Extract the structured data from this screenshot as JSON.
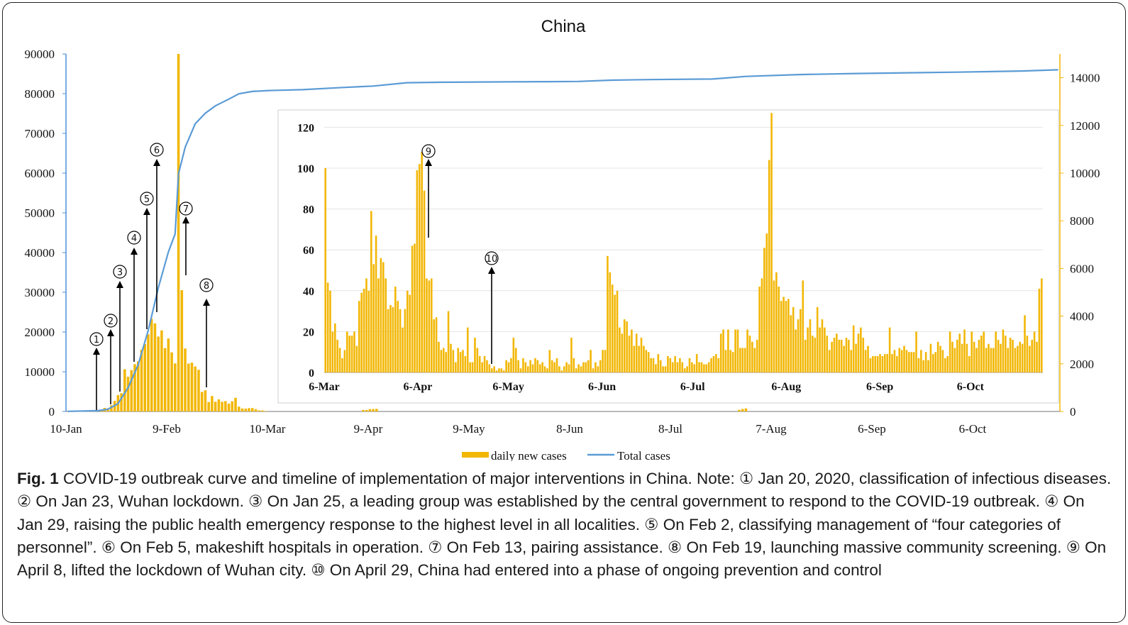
{
  "chart_data": [
    {
      "type": "bar+line",
      "title": "China",
      "x_tick_labels": [
        "10-Jan",
        "9-Feb",
        "10-Mar",
        "9-Apr",
        "9-May",
        "8-Jun",
        "8-Jul",
        "7-Aug",
        "6-Sep",
        "6-Oct"
      ],
      "y_left_ticks": [
        "0",
        "10000",
        "20000",
        "30000",
        "40000",
        "50000",
        "60000",
        "70000",
        "80000",
        "90000"
      ],
      "y_right_ticks": [
        "0",
        "2000",
        "4000",
        "6000",
        "8000",
        "10000",
        "12000",
        "14000"
      ],
      "ylim_left": [
        0,
        90000
      ],
      "ylim_right": [
        0,
        15000
      ],
      "x_start": "2020-01-10",
      "x_end": "2020-10-31",
      "series": [
        {
          "name": "daily new cases",
          "axis": "right",
          "color": "#F2B705",
          "values": [
            [
              "2020-01-20",
              77
            ],
            [
              "2020-01-21",
              149
            ],
            [
              "2020-01-22",
              131
            ],
            [
              "2020-01-23",
              259
            ],
            [
              "2020-01-24",
              444
            ],
            [
              "2020-01-25",
              688
            ],
            [
              "2020-01-26",
              769
            ],
            [
              "2020-01-27",
              1771
            ],
            [
              "2020-01-28",
              1459
            ],
            [
              "2020-01-29",
              1737
            ],
            [
              "2020-01-30",
              1982
            ],
            [
              "2020-01-31",
              2102
            ],
            [
              "2020-02-01",
              2590
            ],
            [
              "2020-02-02",
              2829
            ],
            [
              "2020-02-03",
              3235
            ],
            [
              "2020-02-04",
              3887
            ],
            [
              "2020-02-05",
              3694
            ],
            [
              "2020-02-06",
              3143
            ],
            [
              "2020-02-07",
              3399
            ],
            [
              "2020-02-08",
              2656
            ],
            [
              "2020-02-09",
              3062
            ],
            [
              "2020-02-10",
              2478
            ],
            [
              "2020-02-11",
              2015
            ],
            [
              "2020-02-12",
              15000
            ],
            [
              "2020-02-13",
              5090
            ],
            [
              "2020-02-14",
              2641
            ],
            [
              "2020-02-15",
              2009
            ],
            [
              "2020-02-16",
              2048
            ],
            [
              "2020-02-17",
              1886
            ],
            [
              "2020-02-18",
              1749
            ],
            [
              "2020-02-19",
              820
            ],
            [
              "2020-02-20",
              889
            ],
            [
              "2020-02-21",
              397
            ],
            [
              "2020-02-22",
              648
            ],
            [
              "2020-02-23",
              409
            ],
            [
              "2020-02-24",
              508
            ],
            [
              "2020-02-25",
              406
            ],
            [
              "2020-02-26",
              433
            ],
            [
              "2020-02-27",
              327
            ],
            [
              "2020-02-28",
              427
            ],
            [
              "2020-02-29",
              573
            ],
            [
              "2020-03-01",
              202
            ],
            [
              "2020-03-02",
              125
            ],
            [
              "2020-03-03",
              119
            ],
            [
              "2020-03-04",
              139
            ],
            [
              "2020-03-05",
              143
            ],
            [
              "2020-03-06",
              99
            ],
            [
              "2020-03-07",
              44
            ],
            [
              "2020-03-08",
              40
            ],
            [
              "2020-03-09",
              19
            ],
            [
              "2020-04-07",
              62
            ],
            [
              "2020-04-08",
              63
            ],
            [
              "2020-04-09",
              99
            ],
            [
              "2020-04-10",
              102
            ],
            [
              "2020-04-11",
              108
            ],
            [
              "2020-07-28",
              68
            ],
            [
              "2020-07-29",
              104
            ],
            [
              "2020-07-30",
              127
            ]
          ]
        },
        {
          "name": "Total cases",
          "axis": "left",
          "color": "#5B9BD5",
          "values": [
            [
              "2020-01-10",
              41
            ],
            [
              "2020-01-19",
              201
            ],
            [
              "2020-01-22",
              571
            ],
            [
              "2020-01-25",
              1975
            ],
            [
              "2020-01-28",
              5974
            ],
            [
              "2020-01-31",
              11791
            ],
            [
              "2020-02-03",
              20438
            ],
            [
              "2020-02-06",
              31161
            ],
            [
              "2020-02-09",
              40171
            ],
            [
              "2020-02-11",
              44653
            ],
            [
              "2020-02-12",
              59804
            ],
            [
              "2020-02-14",
              66492
            ],
            [
              "2020-02-17",
              72436
            ],
            [
              "2020-02-20",
              75077
            ],
            [
              "2020-02-23",
              76936
            ],
            [
              "2020-02-27",
              78630
            ],
            [
              "2020-03-01",
              79968
            ],
            [
              "2020-03-05",
              80552
            ],
            [
              "2020-03-10",
              80778
            ],
            [
              "2020-03-20",
              81008
            ],
            [
              "2020-04-01",
              81554
            ],
            [
              "2020-04-10",
              81907
            ],
            [
              "2020-04-20",
              82747
            ],
            [
              "2020-05-01",
              82875
            ],
            [
              "2020-05-20",
              82965
            ],
            [
              "2020-06-01",
              83022
            ],
            [
              "2020-06-10",
              83064
            ],
            [
              "2020-06-20",
              83396
            ],
            [
              "2020-07-01",
              83534
            ],
            [
              "2020-07-20",
              83682
            ],
            [
              "2020-07-30",
              84337
            ],
            [
              "2020-08-15",
              84808
            ],
            [
              "2020-09-01",
              85077
            ],
            [
              "2020-09-20",
              85291
            ],
            [
              "2020-10-01",
              85414
            ],
            [
              "2020-10-20",
              85704
            ],
            [
              "2020-10-31",
              86000
            ]
          ]
        }
      ],
      "legend": {
        "placement": "bottom",
        "entries": [
          "daily new cases",
          "Total cases"
        ]
      },
      "annotations": [
        "①",
        "②",
        "③",
        "④",
        "⑤",
        "⑥",
        "⑦",
        "⑧"
      ]
    },
    {
      "type": "bar",
      "role": "inset",
      "x_tick_labels": [
        "6-Mar",
        "6-Apr",
        "6-May",
        "6-Jun",
        "6-Jul",
        "6-Aug",
        "6-Sep",
        "6-Oct"
      ],
      "y_ticks": [
        "0",
        "20",
        "40",
        "60",
        "80",
        "100",
        "120"
      ],
      "ylim": [
        0,
        130
      ],
      "x_start": "2020-03-06",
      "x_end": "2020-10-29",
      "series": [
        {
          "name": "daily new cases",
          "color": "#F2B705",
          "values": [
            100,
            44,
            40,
            20,
            24,
            16,
            12,
            7,
            11,
            20,
            18,
            18,
            20,
            13,
            35,
            39,
            41,
            46,
            40,
            79,
            53,
            67,
            46,
            56,
            54,
            46,
            31,
            33,
            32,
            42,
            35,
            31,
            22,
            31,
            40,
            38,
            62,
            63,
            99,
            102,
            108,
            89,
            46,
            45,
            46,
            26,
            27,
            15,
            11,
            12,
            10,
            30,
            14,
            11,
            5,
            12,
            10,
            11,
            8,
            22,
            5,
            5,
            17,
            12,
            8,
            5,
            8,
            6,
            4,
            2,
            3,
            1,
            2,
            2,
            1,
            6,
            5,
            7,
            17,
            12,
            6,
            2,
            7,
            5,
            3,
            6,
            4,
            7,
            6,
            4,
            5,
            3,
            2,
            11,
            6,
            5,
            7,
            3,
            1,
            3,
            5,
            4,
            17,
            7,
            2,
            4,
            3,
            5,
            5,
            6,
            11,
            2,
            5,
            3,
            6,
            11,
            11,
            57,
            49,
            43,
            38,
            40,
            22,
            19,
            26,
            25,
            18,
            21,
            13,
            19,
            13,
            17,
            13,
            11,
            10,
            7,
            7,
            4,
            9,
            6,
            3,
            3,
            8,
            7,
            5,
            8,
            5,
            7,
            5,
            2,
            3,
            7,
            5,
            4,
            9,
            5,
            5,
            4,
            4,
            5,
            7,
            8,
            9,
            7,
            19,
            21,
            11,
            21,
            11,
            10,
            21,
            21,
            12,
            12,
            12,
            21,
            18,
            15,
            12,
            16,
            42,
            46,
            61,
            68,
            104,
            127,
            45,
            49,
            42,
            35,
            37,
            35,
            36,
            28,
            32,
            21,
            26,
            31,
            45,
            16,
            22,
            26,
            18,
            17,
            32,
            22,
            26,
            22,
            18,
            11,
            15,
            17,
            19,
            16,
            16,
            13,
            17,
            16,
            11,
            23,
            14,
            19,
            22,
            17,
            11,
            13,
            7,
            8,
            8,
            8,
            9,
            8,
            9,
            9,
            22,
            9,
            11,
            8,
            12,
            11,
            13,
            11,
            10,
            10,
            10,
            20,
            7,
            11,
            6,
            10,
            6,
            14,
            9,
            10,
            15,
            13,
            11,
            7,
            8,
            20,
            15,
            12,
            16,
            19,
            14,
            21,
            14,
            8,
            20,
            15,
            12,
            16,
            18,
            20,
            12,
            14,
            12,
            12,
            20,
            16,
            14,
            21,
            18,
            12,
            17,
            16,
            12,
            13,
            15,
            14,
            28,
            18,
            13,
            16,
            20,
            15,
            41,
            46
          ]
        }
      ],
      "annotations": [
        "⑨",
        "⑩"
      ]
    }
  ],
  "caption": {
    "fig_label": "Fig. 1",
    "text": " COVID-19 outbreak curve and timeline of implementation of major interventions in China. Note: ① Jan 20, 2020, classification of infectious diseases. ② On Jan 23, Wuhan lockdown. ③ On Jan 25, a leading group was established by the central government to respond to the COVID-19 outbreak. ④ On Jan 29, raising the public health emergency response to the highest level in all localities. ⑤ On Feb 2, classifying management of “four categories of personnel”. ⑥ On Feb 5, makeshift hospitals in operation. ⑦ On Feb 13, pairing assistance. ⑧ On Feb 19, launching massive community screening. ⑨ On April 8, lifted the lockdown of Wuhan city. ⑩ On April 29, China had entered into a phase of ongoing prevention and control"
  }
}
